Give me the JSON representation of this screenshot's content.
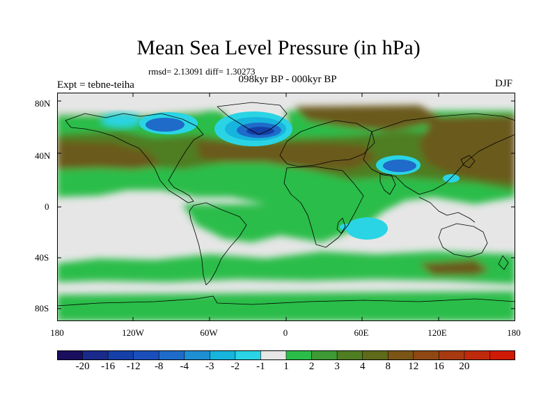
{
  "title": "Mean Sea Level Pressure (in hPa)",
  "stats": "rmsd= 2.13091 diff= 1.30273",
  "period": "098kyr BP - 000kyr BP",
  "experiment": "Expt = tebne-teiha",
  "season": "DJF",
  "lat_labels": [
    "80N",
    "40N",
    "0",
    "40S",
    "80S"
  ],
  "lon_labels": [
    "180",
    "120W",
    "60W",
    "0",
    "60E",
    "120E",
    "180"
  ],
  "colorbar": {
    "labels": [
      "-20",
      "-16",
      "-12",
      "-8",
      "-4",
      "-3",
      "-2",
      "-1",
      "1",
      "2",
      "3",
      "4",
      "8",
      "12",
      "16",
      "20"
    ],
    "colors": [
      "#1a0e5e",
      "#1a2a8a",
      "#1540a8",
      "#1a4fbb",
      "#1f6bc9",
      "#1f8fd4",
      "#17b4de",
      "#2ad4e4",
      "#e6e6e6",
      "#2bbd4a",
      "#3d9a35",
      "#4f7d22",
      "#5f6a1a",
      "#7a5516",
      "#8f4813",
      "#a73a10",
      "#bf2a0c",
      "#d11a05"
    ]
  },
  "palette": {
    "neutral": "#e6e6e6",
    "green": "#2bbd4a",
    "olive": "#4f7d22",
    "brown": "#6b5a1c",
    "darkbrown": "#7a5516",
    "cyan": "#2ad4e4",
    "lightblue": "#17b4de",
    "blue": "#1f6bc9",
    "navy": "#1540a8"
  }
}
